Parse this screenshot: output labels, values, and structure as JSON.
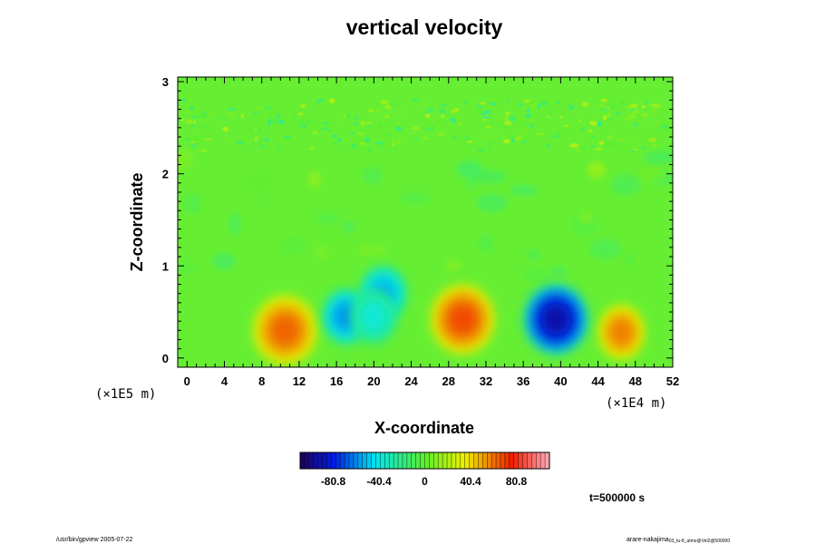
{
  "chart_data": {
    "type": "heatmap",
    "title": "vertical velocity",
    "xlabel": "X-coordinate",
    "ylabel": "Z-coordinate",
    "x_unit": "(×1E4 m)",
    "y_unit": "(×1E5 m)",
    "xlim": [
      -1,
      52
    ],
    "ylim": [
      -0.1,
      3.05
    ],
    "x_ticks": [
      "0",
      "4",
      "8",
      "12",
      "16",
      "20",
      "24",
      "28",
      "32",
      "36",
      "40",
      "44",
      "48",
      "52"
    ],
    "y_ticks": [
      "0",
      "1",
      "2",
      "3"
    ],
    "colorbar": {
      "range": [
        -110,
        110
      ],
      "tick_values": [
        -80.8,
        -40.4,
        0,
        40.4,
        80.8
      ],
      "tick_labels": [
        "-80.8",
        "-40.4",
        "0",
        "40.4",
        "80.8"
      ]
    },
    "features": [
      {
        "x": 29.5,
        "z": 0.42,
        "value": 70
      },
      {
        "x": 10.5,
        "z": 0.3,
        "value": 65
      },
      {
        "x": 46.5,
        "z": 0.28,
        "value": 60
      },
      {
        "x": 39.5,
        "z": 0.42,
        "value": -95
      },
      {
        "x": 17.0,
        "z": 0.45,
        "value": -60
      },
      {
        "x": 21.0,
        "z": 0.7,
        "value": -55
      },
      {
        "x": 20.0,
        "z": 0.45,
        "value": -40
      }
    ],
    "time_label": "t=500000 s"
  },
  "footer": {
    "left": "/usr/bin/gpview 2005-07-22",
    "right_main": "arare-nakajima",
    "right_sub": "03_tu-8_atmo@Vel2@500000"
  },
  "colors": {
    "background": "#ffffff",
    "neutral_field": "#66ee33"
  }
}
